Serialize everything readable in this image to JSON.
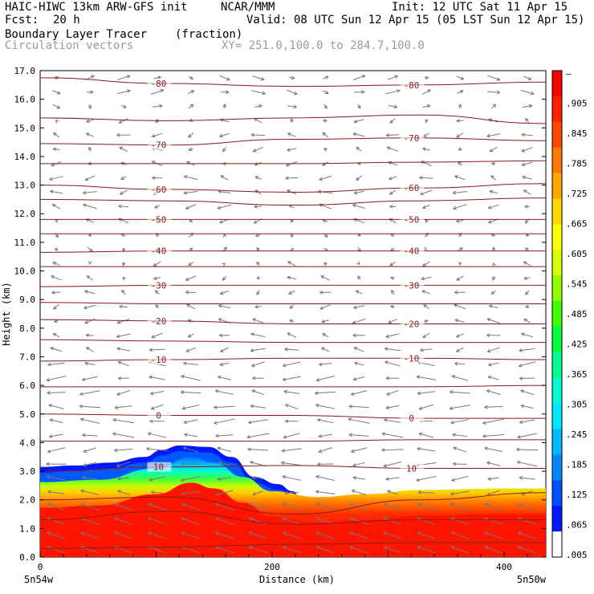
{
  "header": {
    "model": "HAIC-HIWC 13km ARW-GFS init",
    "org": "NCAR/MMM",
    "init": "Init: 12 UTC Sat 11 Apr 15",
    "fcst_label": "Fcst:",
    "fcst_value": "20 h",
    "valid": "Valid: 08 UTC Sun 12 Apr 15 (05 LST Sun 12 Apr 15)",
    "field1": "Boundary Layer Tracer",
    "field1_units": "(fraction)",
    "field2": "Circulation vectors",
    "xy": "XY= 251.0,100.0 to 284.7,100.0"
  },
  "colors": {
    "contour": "#8b1a1a",
    "vector": "#777777",
    "scale": [
      "#ffffff",
      "#0018ff",
      "#0050ff",
      "#0088ff",
      "#00b8ff",
      "#00e8ff",
      "#00ffd0",
      "#00ff90",
      "#00ff40",
      "#40ff00",
      "#90ff00",
      "#d8ff00",
      "#ffff00",
      "#ffd800",
      "#ffa800",
      "#ff7800",
      "#ff4800",
      "#ff2000",
      "#ff0000"
    ]
  },
  "chart_data": {
    "type": "heatmap",
    "xlabel": "Distance (km)",
    "ylabel": "Height (km)",
    "xlim": [
      0,
      436
    ],
    "ylim": [
      0.0,
      17.0
    ],
    "x_ticks": [
      0,
      200,
      400
    ],
    "y_ticks": [
      "0.0",
      "1.0",
      "2.0",
      "3.0",
      "4.0",
      "5.0",
      "6.0",
      "7.0",
      "8.0",
      "9.0",
      "10.0",
      "11.0",
      "12.0",
      "13.0",
      "14.0",
      "15.0",
      "16.0",
      "17.0"
    ],
    "x_endpoints": [
      "5n54w",
      "5n50w"
    ],
    "colorbar_labels": [
      "–",
      ".905",
      ".845",
      ".785",
      ".725",
      ".665",
      ".605",
      ".545",
      ".485",
      ".425",
      ".365",
      ".305",
      ".245",
      ".185",
      ".125",
      ".065",
      ".005"
    ],
    "tracer_top_km": [
      [
        0,
        3.15
      ],
      [
        30,
        3.2
      ],
      [
        60,
        3.3
      ],
      [
        90,
        3.5
      ],
      [
        105,
        3.75
      ],
      [
        120,
        3.9
      ],
      [
        145,
        3.85
      ],
      [
        165,
        3.5
      ],
      [
        185,
        2.8
      ],
      [
        205,
        2.55
      ],
      [
        218,
        2.3
      ],
      [
        228,
        1.72
      ],
      [
        255,
        1.72
      ],
      [
        300,
        1.85
      ],
      [
        350,
        1.95
      ],
      [
        400,
        1.95
      ],
      [
        436,
        1.95
      ]
    ],
    "red_top_km": [
      [
        0,
        1.72
      ],
      [
        50,
        1.8
      ],
      [
        100,
        2.2
      ],
      [
        130,
        2.6
      ],
      [
        150,
        2.4
      ],
      [
        175,
        1.9
      ],
      [
        200,
        1.4
      ],
      [
        240,
        1.2
      ],
      [
        280,
        1.3
      ],
      [
        330,
        1.45
      ],
      [
        400,
        1.5
      ],
      [
        436,
        1.5
      ]
    ],
    "temperature_contours": [
      {
        "label": "-80",
        "y_km": [
          16.75,
          16.55,
          16.45,
          16.5,
          16.6
        ]
      },
      {
        "label": "",
        "y_km": [
          15.35,
          15.25,
          15.35,
          15.45,
          15.15
        ]
      },
      {
        "label": "-70",
        "y_km": [
          14.45,
          14.4,
          14.6,
          14.65,
          14.55
        ]
      },
      {
        "label": "",
        "y_km": [
          13.75,
          13.75,
          13.75,
          13.8,
          13.85
        ]
      },
      {
        "label": "-60",
        "y_km": [
          13.0,
          12.85,
          12.75,
          12.9,
          13.05
        ]
      },
      {
        "label": "",
        "y_km": [
          12.5,
          12.45,
          12.3,
          12.45,
          12.55
        ]
      },
      {
        "label": "-50",
        "y_km": [
          11.8,
          11.8,
          11.8,
          11.8,
          11.8
        ]
      },
      {
        "label": "",
        "y_km": [
          11.3,
          11.3,
          11.3,
          11.3,
          11.3
        ]
      },
      {
        "label": "-40",
        "y_km": [
          10.65,
          10.7,
          10.7,
          10.7,
          10.7
        ]
      },
      {
        "label": "",
        "y_km": [
          10.15,
          10.15,
          10.15,
          10.15,
          10.15
        ]
      },
      {
        "label": "-30",
        "y_km": [
          9.45,
          9.5,
          9.5,
          9.5,
          9.5
        ]
      },
      {
        "label": "",
        "y_km": [
          8.9,
          8.85,
          8.85,
          8.85,
          8.85
        ]
      },
      {
        "label": "-20",
        "y_km": [
          8.3,
          8.25,
          8.15,
          8.15,
          8.15
        ]
      },
      {
        "label": "",
        "y_km": [
          7.6,
          7.55,
          7.5,
          7.5,
          7.5
        ]
      },
      {
        "label": "-10",
        "y_km": [
          6.85,
          6.9,
          6.95,
          6.95,
          6.9
        ]
      },
      {
        "label": "",
        "y_km": [
          5.95,
          5.95,
          5.95,
          5.95,
          6.0
        ]
      },
      {
        "label": "0",
        "y_km": [
          5.0,
          4.95,
          4.95,
          4.85,
          4.85
        ]
      },
      {
        "label": "",
        "y_km": [
          4.05,
          4.05,
          4.05,
          4.1,
          4.1
        ]
      },
      {
        "label": "10",
        "y_km": [
          3.0,
          3.15,
          3.2,
          3.1,
          3.1
        ]
      },
      {
        "label": "",
        "y_km": [
          2.0,
          2.1,
          1.5,
          2.0,
          2.25
        ]
      },
      {
        "label": "",
        "y_km": [
          1.3,
          1.6,
          1.15,
          1.3,
          1.3
        ]
      },
      {
        "label": "",
        "y_km": [
          0.3,
          0.35,
          0.45,
          0.5,
          0.5
        ]
      }
    ],
    "contour_x_km": [
      0,
      109,
      218,
      327,
      436
    ],
    "wind_u_profile": [
      [
        0,
        -0.3
      ],
      [
        2,
        -0.8
      ],
      [
        4,
        -1.0
      ],
      [
        6,
        -0.9
      ],
      [
        8,
        -0.5
      ],
      [
        10,
        -0.3
      ],
      [
        11,
        0.15
      ],
      [
        12,
        -0.5
      ],
      [
        13,
        -0.6
      ],
      [
        14,
        -0.3
      ],
      [
        15,
        -0.6
      ],
      [
        16,
        0.6
      ],
      [
        17,
        0.4
      ]
    ]
  }
}
